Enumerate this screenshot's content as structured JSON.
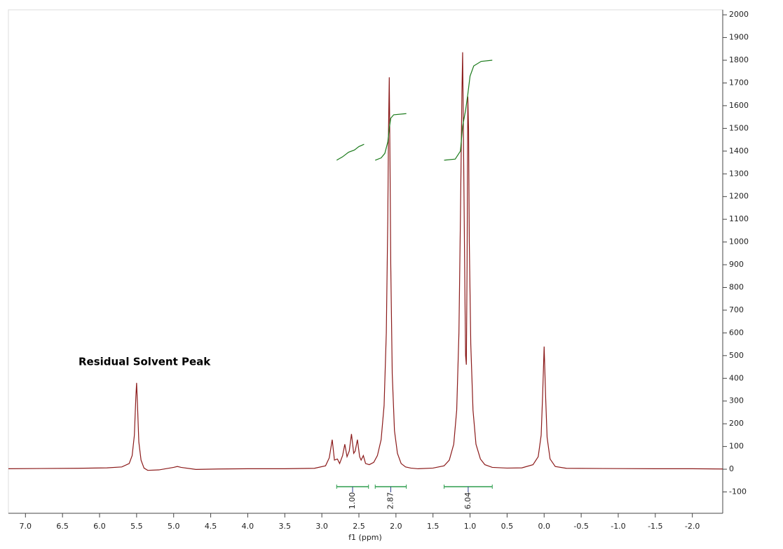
{
  "chart_data": {
    "type": "line",
    "xlabel": "f1 (ppm)",
    "annotation": "Residual Solvent Peak",
    "xlim": [
      7.23,
      -2.41
    ],
    "ylim": [
      -194,
      2022
    ],
    "xticks": [
      {
        "value": 7,
        "label": "7.0"
      },
      6.5,
      {
        "value": 6,
        "label": "6.0"
      },
      5.5,
      {
        "value": 5,
        "label": "5.0"
      },
      4.5,
      {
        "value": 4,
        "label": "4.0"
      },
      3.5,
      {
        "value": 3,
        "label": "3.0"
      },
      2.5,
      {
        "value": 2,
        "label": "2.0"
      },
      1.5,
      {
        "value": 1,
        "label": "1.0"
      },
      0.5,
      {
        "value": 0,
        "label": "0.0"
      },
      -0.5,
      {
        "value": -1,
        "label": "-1.0"
      },
      -1.5,
      {
        "value": -2,
        "label": "-2.0"
      }
    ],
    "yticks": [
      2000,
      1900,
      1800,
      1700,
      1600,
      1500,
      1400,
      1300,
      1200,
      1100,
      1000,
      900,
      800,
      700,
      600,
      500,
      400,
      300,
      200,
      100,
      0,
      -100
    ],
    "series": [
      {
        "color": "#8b1a1a",
        "x": [
          7.23,
          6.8,
          6.3,
          5.9,
          5.7,
          5.6,
          5.56,
          5.53,
          5.51,
          5.5,
          5.49,
          5.47,
          5.44,
          5.4,
          5.35,
          5.2,
          5.0,
          4.95,
          4.9,
          4.7,
          4.4,
          4.0,
          3.5,
          3.1,
          2.95,
          2.9,
          2.86,
          2.83,
          2.79,
          2.76,
          2.72,
          2.69,
          2.66,
          2.63,
          2.6,
          2.57,
          2.55,
          2.52,
          2.49,
          2.47,
          2.44,
          2.41,
          2.36,
          2.3,
          2.25,
          2.2,
          2.16,
          2.13,
          2.11,
          2.1,
          2.09,
          2.08,
          2.07,
          2.05,
          2.02,
          1.98,
          1.93,
          1.87,
          1.8,
          1.7,
          1.5,
          1.35,
          1.28,
          1.22,
          1.18,
          1.15,
          1.13,
          1.11,
          1.1,
          1.09,
          1.07,
          1.06,
          1.05,
          1.04,
          1.03,
          1.02,
          1.01,
          0.99,
          0.96,
          0.92,
          0.86,
          0.8,
          0.7,
          0.5,
          0.3,
          0.15,
          0.08,
          0.04,
          0.02,
          0,
          -0.02,
          -0.04,
          -0.08,
          -0.15,
          -0.3,
          -0.8,
          -1.5,
          -2.0,
          -2.41
        ],
        "values": [
          2,
          3,
          4,
          6,
          10,
          25,
          60,
          150,
          320,
          380,
          300,
          120,
          40,
          5,
          -5,
          -3,
          8,
          12,
          8,
          -1,
          1,
          2,
          2,
          4,
          15,
          50,
          130,
          40,
          45,
          25,
          60,
          110,
          55,
          80,
          155,
          70,
          80,
          130,
          55,
          40,
          60,
          25,
          20,
          30,
          60,
          130,
          280,
          600,
          1100,
          1500,
          1725,
          1350,
          900,
          420,
          170,
          70,
          25,
          10,
          5,
          2,
          5,
          15,
          40,
          110,
          260,
          600,
          1100,
          1650,
          1835,
          1500,
          800,
          500,
          460,
          900,
          1640,
          1500,
          1000,
          550,
          260,
          110,
          45,
          20,
          8,
          5,
          6,
          20,
          55,
          150,
          330,
          540,
          320,
          140,
          45,
          12,
          4,
          3,
          2,
          2,
          1
        ]
      },
      {
        "color": "#1a7a1a",
        "x": [
          2.8,
          2.72,
          2.64,
          2.56,
          2.5,
          2.43
        ],
        "values": [
          1360,
          1375,
          1395,
          1405,
          1420,
          1430
        ]
      },
      {
        "color": "#1a7a1a",
        "x": [
          2.28,
          2.2,
          2.15,
          2.11,
          2.09,
          2.07,
          2.03,
          1.86
        ],
        "values": [
          1360,
          1370,
          1390,
          1440,
          1500,
          1545,
          1560,
          1565
        ]
      },
      {
        "color": "#1a7a1a",
        "x": [
          1.35,
          1.2,
          1.13,
          1.1,
          1.06,
          1.03,
          1.0,
          0.95,
          0.85,
          0.7
        ],
        "values": [
          1360,
          1365,
          1400,
          1510,
          1580,
          1650,
          1730,
          1775,
          1795,
          1800
        ]
      }
    ],
    "integrals": {
      "ranges": [
        [
          2.8,
          2.37
        ],
        [
          2.28,
          1.86
        ],
        [
          1.35,
          0.7
        ]
      ],
      "values": [
        1,
        2.87,
        6.04
      ],
      "value_labels": [
        "1.00",
        "2.87",
        "6.04"
      ],
      "color": "#2e9e4e",
      "label_color": "#2a3a8a"
    }
  }
}
